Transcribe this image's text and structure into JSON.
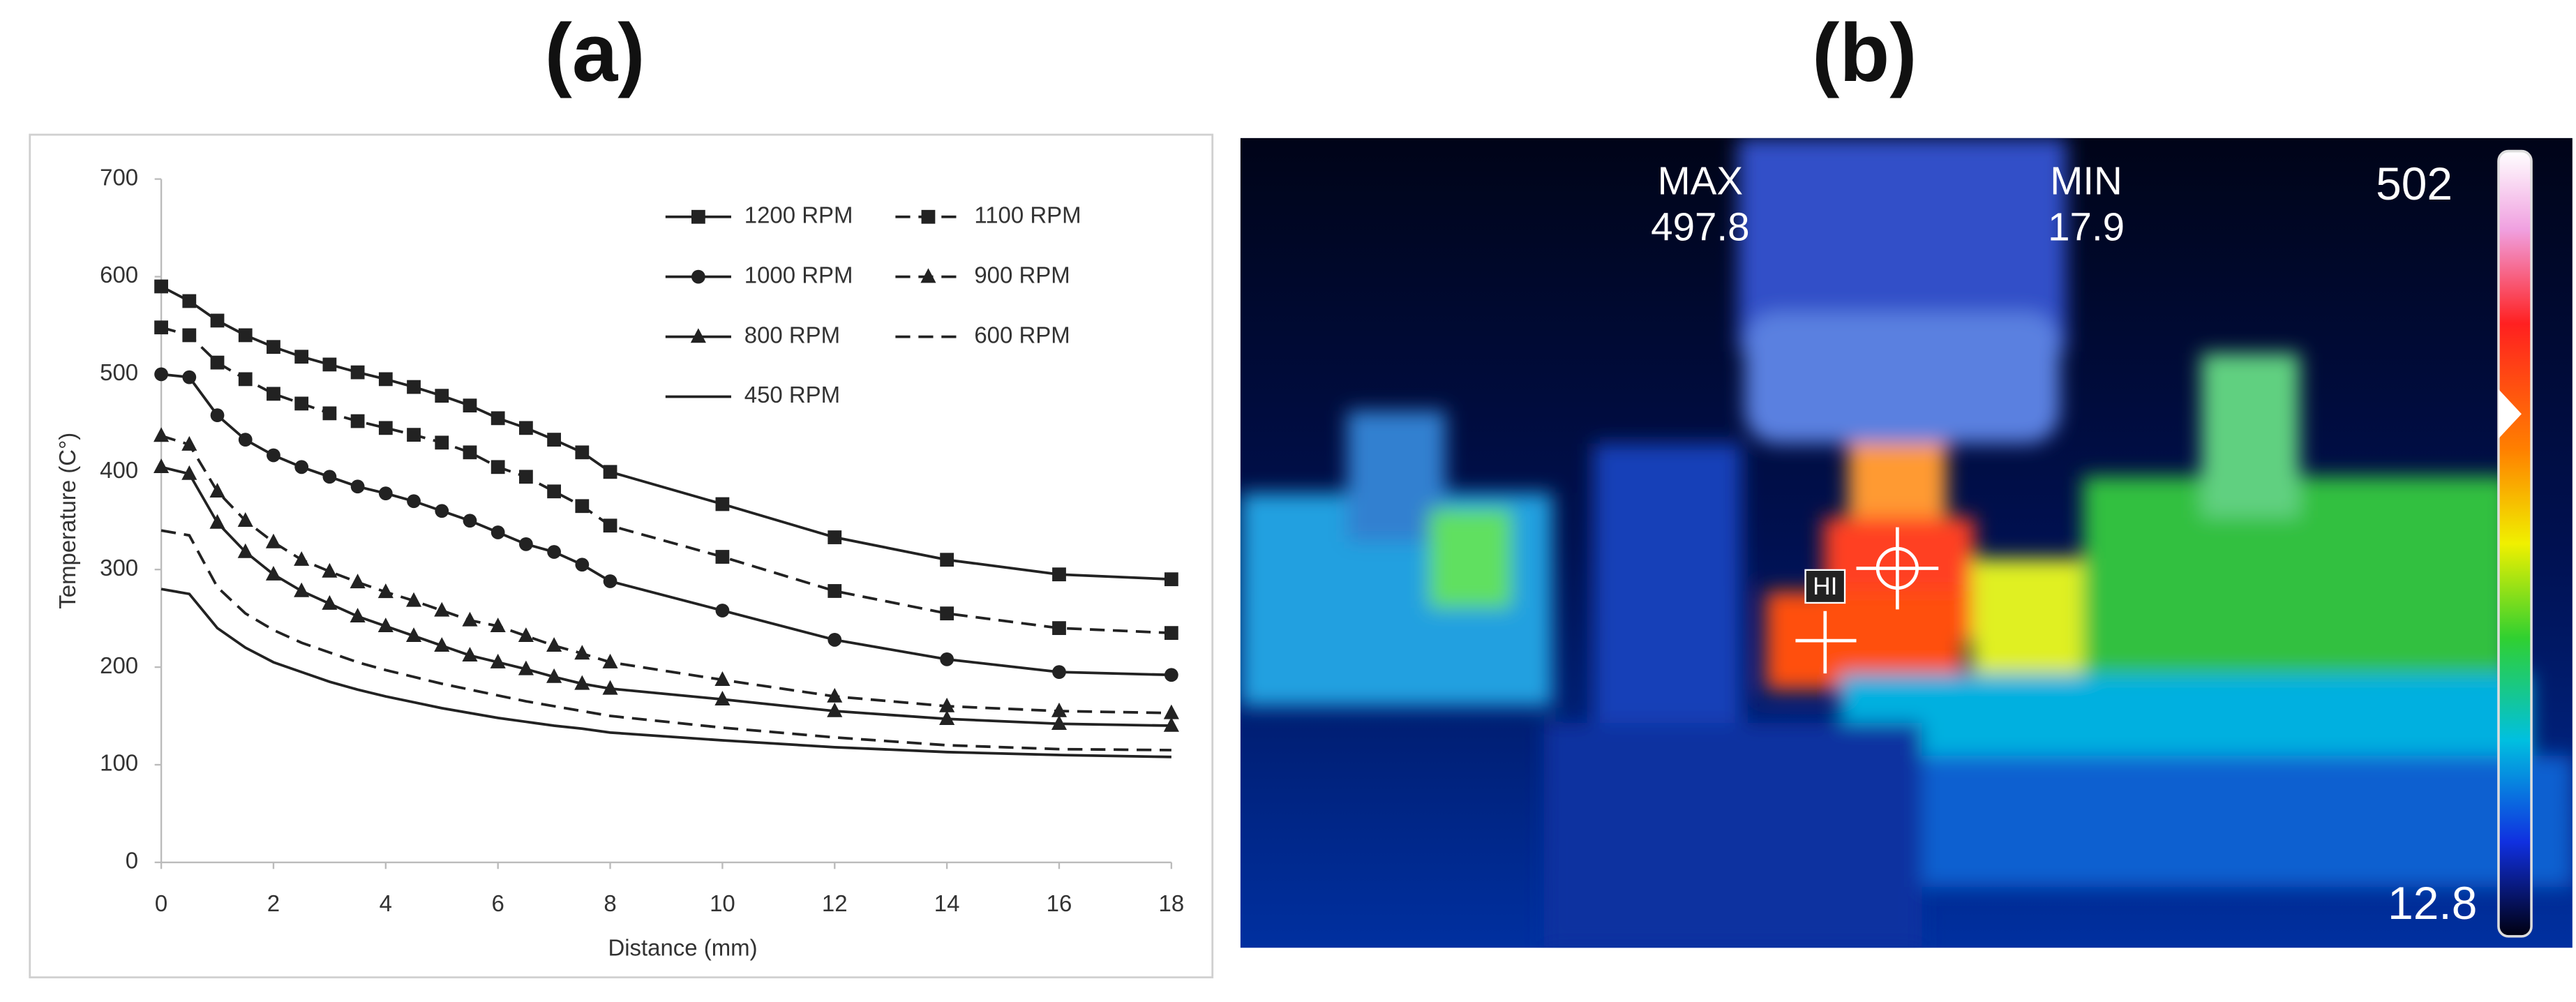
{
  "panel_labels": [
    "(a)",
    "(b)"
  ],
  "chart_data": {
    "type": "line",
    "xlabel": "Distance (mm)",
    "ylabel": "Temperature (C°)",
    "x": [
      0,
      0.5,
      1,
      1.5,
      2,
      2.5,
      3,
      3.5,
      4,
      4.5,
      5,
      5.5,
      6,
      6.5,
      7,
      7.5,
      8,
      10,
      12,
      14,
      16,
      18
    ],
    "xlim": [
      0,
      18
    ],
    "xticks": [
      0,
      2,
      4,
      6,
      8,
      10,
      12,
      14,
      16,
      18
    ],
    "ylim": [
      0,
      700
    ],
    "yticks": [
      0,
      100,
      200,
      300,
      400,
      500,
      600,
      700
    ],
    "grid": false,
    "legend": "upper right",
    "series": [
      {
        "name": "1200 RPM",
        "color": "#222222",
        "marker": "square",
        "dash": "solid",
        "values": [
          590,
          575,
          555,
          540,
          528,
          518,
          510,
          502,
          495,
          487,
          478,
          468,
          455,
          445,
          433,
          420,
          400,
          367,
          333,
          310,
          295,
          290
        ]
      },
      {
        "name": "1100 RPM",
        "color": "#222222",
        "marker": "square",
        "dash": "dashed",
        "values": [
          548,
          540,
          512,
          495,
          480,
          470,
          460,
          452,
          445,
          438,
          430,
          420,
          405,
          395,
          380,
          365,
          345,
          313,
          278,
          255,
          240,
          235
        ]
      },
      {
        "name": "1000 RPM",
        "color": "#222222",
        "marker": "circle",
        "dash": "solid",
        "values": [
          500,
          497,
          458,
          433,
          417,
          405,
          395,
          385,
          378,
          370,
          360,
          350,
          338,
          326,
          318,
          305,
          288,
          258,
          228,
          208,
          195,
          192
        ]
      },
      {
        "name": "900 RPM",
        "color": "#222222",
        "marker": "triangle",
        "dash": "dashed",
        "values": [
          437,
          428,
          380,
          350,
          328,
          310,
          298,
          287,
          277,
          268,
          258,
          248,
          242,
          232,
          222,
          214,
          205,
          187,
          170,
          160,
          155,
          153
        ]
      },
      {
        "name": "800 RPM",
        "color": "#222222",
        "marker": "triangle",
        "dash": "solid",
        "values": [
          405,
          398,
          348,
          318,
          295,
          278,
          265,
          252,
          242,
          232,
          222,
          212,
          205,
          198,
          190,
          183,
          178,
          167,
          155,
          147,
          142,
          140
        ]
      },
      {
        "name": "600 RPM",
        "color": "#222222",
        "marker": "none",
        "dash": "dashed",
        "values": [
          340,
          335,
          282,
          255,
          238,
          225,
          215,
          205,
          197,
          190,
          183,
          177,
          171,
          165,
          160,
          155,
          150,
          138,
          128,
          120,
          116,
          115
        ]
      },
      {
        "name": "450 RPM",
        "color": "#222222",
        "marker": "none",
        "dash": "solid",
        "values": [
          280,
          275,
          240,
          220,
          205,
          195,
          185,
          177,
          170,
          164,
          158,
          153,
          148,
          144,
          140,
          137,
          133,
          125,
          118,
          113,
          110,
          108
        ]
      }
    ]
  },
  "thermal_image": {
    "max_label": "MAX",
    "max_value": 497.8,
    "min_label": "MIN",
    "min_value": 17.9,
    "scale_top": 502,
    "scale_bottom": 12.8,
    "marker_label": "HI"
  }
}
